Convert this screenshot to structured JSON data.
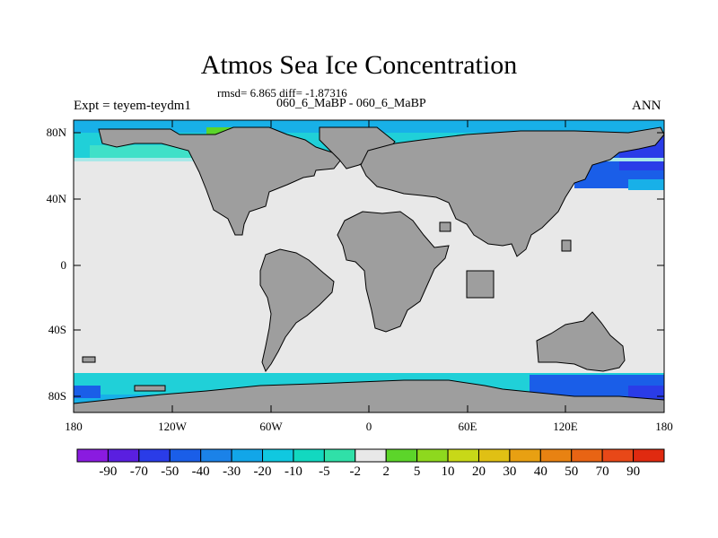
{
  "title": "Atmos Sea Ice Concentration",
  "stats": "rmsd= 6.865 diff= -1.87316",
  "subtitle": "060_6_MaBP - 060_6_MaBP",
  "experiment": "Expt = teyem-teydm1",
  "season": "ANN",
  "map": {
    "lon_ticks": [
      "180",
      "120W",
      "60W",
      "0",
      "60E",
      "120E",
      "180"
    ],
    "lat_ticks": [
      "80N",
      "40N",
      "0",
      "40S",
      "80S"
    ],
    "colors": {
      "land": "#9e9e9e",
      "ocean": "#e8e8e8"
    }
  },
  "colorbar": {
    "labels": [
      "-90",
      "-70",
      "-50",
      "-40",
      "-30",
      "-20",
      "-10",
      "-5",
      "-2",
      "2",
      "5",
      "10",
      "20",
      "30",
      "40",
      "50",
      "70",
      "90"
    ],
    "colors": [
      "#8a1be0",
      "#5a1fe0",
      "#2a3ce8",
      "#1a5ee8",
      "#1b82e8",
      "#12a6e8",
      "#10c8e0",
      "#12d8c0",
      "#30e0a8",
      "#e8e8e8",
      "#5cd52a",
      "#8ed81e",
      "#c8d818",
      "#e0c014",
      "#e8a012",
      "#e88212",
      "#e86414",
      "#e84818",
      "#e02a10"
    ]
  }
}
